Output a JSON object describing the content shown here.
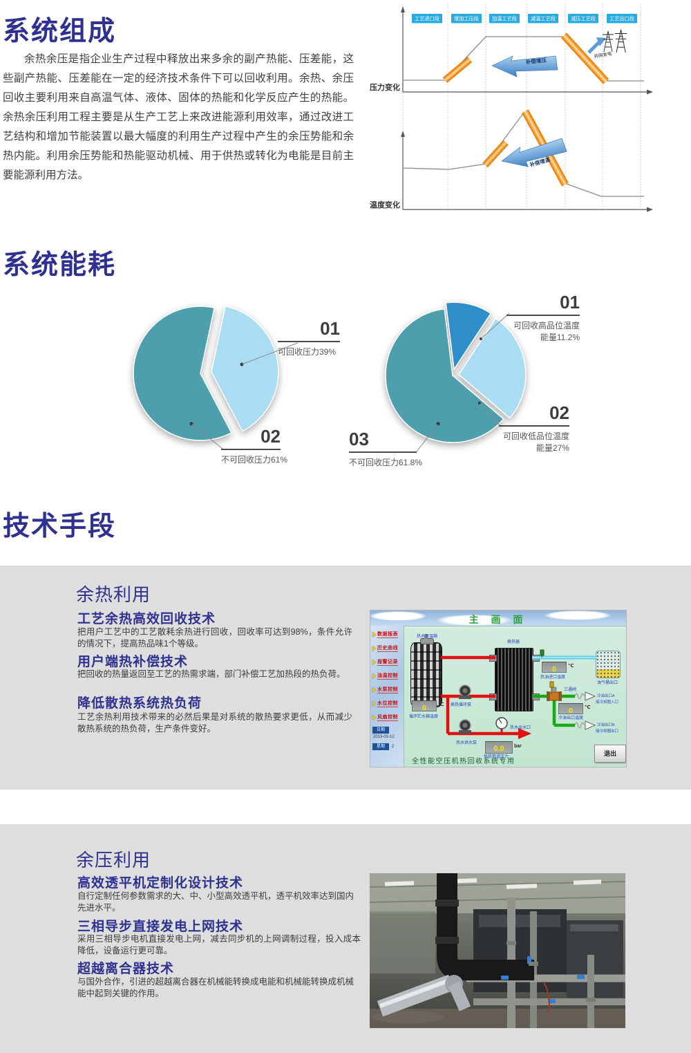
{
  "composition": {
    "title": "系统组成",
    "paragraph": "余热余压是指企业生产过程中释放出来多余的副产热能、压差能，这些副产热能、压差能在一定的经济技术条件下可以回收利用。余热、余压回收主要利用来自高温气体、液体、固体的热能和化学反应产生的热能。余热余压利用工程主要是从生产工艺上来改进能源利用效率，通过改进工艺结构和增加节能装置以最大幅度的利用生产过程中产生的余压势能和余热内能。利用余压势能和热能驱动机械、用于供热或转化为电能是目前主要能源利用方法。"
  },
  "process_diagram": {
    "stages": [
      "工艺进口段",
      "增加工压段",
      "加温工艺段",
      "减温工艺段",
      "减压工艺段",
      "工艺出口段"
    ],
    "pressure_label": "压力变化",
    "temperature_label": "温度变化",
    "pressure_compensate": "补偿增压",
    "temperature_compensate": "补偿增温",
    "grid_power": "并网发电"
  },
  "energy": {
    "title": "系统能耗"
  },
  "chart_data": [
    {
      "type": "pie",
      "legend_position": "right",
      "slices": [
        {
          "num": "01",
          "label": "可回收压力39%",
          "value": 39,
          "color": "#aadcf4"
        },
        {
          "num": "02",
          "label": "不可回收压力61%",
          "value": 61,
          "color": "#4d9fad"
        }
      ]
    },
    {
      "type": "pie",
      "legend_position": "right",
      "slices": [
        {
          "num": "01",
          "label": "可回收高品位温度能量11.2%",
          "value": 11.2,
          "color": "#2e8ec9"
        },
        {
          "num": "02",
          "label": "可回收低品位温度能量27%",
          "value": 27,
          "color": "#aadcf4"
        },
        {
          "num": "03",
          "label": "不可回收压力61.8%",
          "value": 61.8,
          "color": "#4d9fad"
        }
      ]
    }
  ],
  "tech": {
    "title": "技术手段",
    "heat_panel": {
      "title": "余热利用",
      "items": [
        {
          "heading": "工艺余热高效回收技术",
          "body": "把用户工艺中的工艺散耗余热进行回收，回收率可达到98%，条件允许的情况下，提高热品味1个等级。"
        },
        {
          "heading": "用户端热补偿技术",
          "body": "把回收的热量返回至工艺的热需求端，部门补偿工艺加热段的热负荷。"
        },
        {
          "heading": "降低散热系统热负荷",
          "body": "工艺余热利用技术带来的必然后果是对系统的散热要求更低，从而减少散热系统的热负荷，生产条件变好。"
        }
      ]
    },
    "pressure_panel": {
      "title": "余压利用",
      "items": [
        {
          "heading": "高效透平机定制化设计技术",
          "body": "自行定制任何参数需求的大、中、小型高效透平机，透平机效率达到国内先进水平。"
        },
        {
          "heading": "三相导步直接发电上网技术",
          "body": "采用三相导步电机直接发电上网，减去同步机的上网调制过程，投入成本降低，设备运行更可靠。"
        },
        {
          "heading": "超越离合器技术",
          "body": "与国外合作，引进的超越离合器在机械能转换成电能和机械能转换成机械能中起到关键的作用。"
        }
      ]
    }
  },
  "hmi": {
    "title": "主 画 面",
    "menu": [
      "数据报表",
      "历史曲线",
      "报警记录",
      "油温控制",
      "水泵控制",
      "水位控制",
      "风扇控制"
    ],
    "date_label": "日期",
    "date_value": "2013-03-12",
    "week_label": "星期",
    "week_value": "2",
    "tank_label": "热水保温箱",
    "exchanger_label": "换热器",
    "oil_tank_label": "油气桶出口",
    "three_way_valve": "三通阀",
    "readouts": [
      {
        "value": "0",
        "unit": "℃",
        "label": "热油进口温度"
      },
      {
        "value": "0",
        "unit": "℃",
        "label": "冷油出口温度"
      },
      {
        "value": "0",
        "unit": "℃",
        "label": "循环贮水箱温度"
      },
      {
        "value": "0.0",
        "unit": "bar",
        "label": "供热管道压力"
      }
    ],
    "pump1_label": "换热循环泵",
    "pump2_label": "热水供水泵",
    "hot_water_outlet": "热水出水口",
    "cold_oil_a": "冷油出口A",
    "cold_oil_a2": "接冷却圈入口",
    "cold_oil_b": "冷油出口B",
    "cold_oil_b2": "接冷却圈出口",
    "footer": "全性能空压机热回收系统专用",
    "exit_button": "退出"
  }
}
